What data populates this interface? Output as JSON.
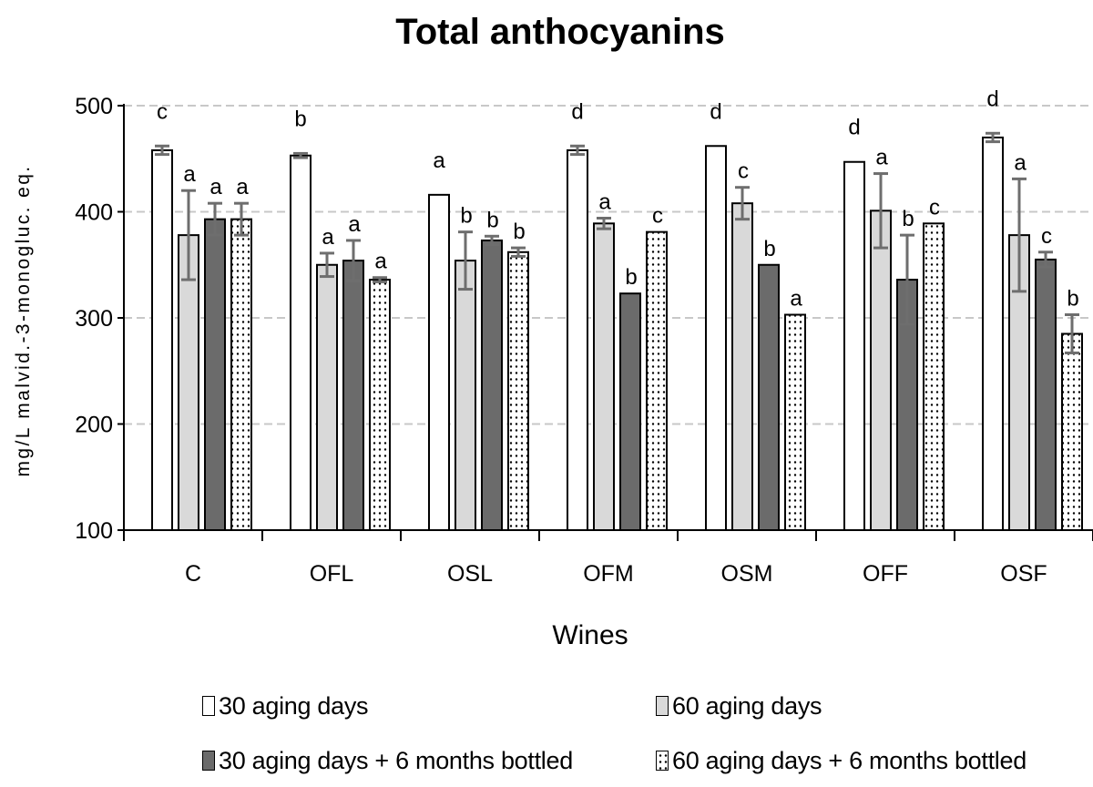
{
  "chart_data": {
    "type": "bar",
    "title": "Total anthocyanins",
    "xlabel": "Wines",
    "ylabel": "mg/L malvid.-3-monogluc. eq.",
    "ylim": [
      100,
      500
    ],
    "yticks": [
      100,
      200,
      300,
      400,
      500
    ],
    "grid": true,
    "legend_position": "bottom",
    "categories": [
      "C",
      "OFL",
      "OSL",
      "OFM",
      "OSM",
      "OFF",
      "OSF"
    ],
    "series": [
      {
        "name": "30 aging days",
        "color": "#ffffff",
        "pattern": "none",
        "values": [
          458,
          453,
          416,
          458,
          462,
          447,
          470
        ],
        "errors": [
          4,
          2,
          0,
          4,
          0,
          0,
          4
        ],
        "letters": [
          "c",
          "b",
          "a",
          "d",
          "d",
          "d",
          "d"
        ]
      },
      {
        "name": "60 aging days",
        "color": "#d9d9d9",
        "pattern": "none",
        "values": [
          378,
          350,
          354,
          389,
          408,
          401,
          378
        ],
        "errors": [
          42,
          11,
          27,
          5,
          15,
          35,
          53
        ],
        "letters": [
          "a",
          "a",
          "b",
          "a",
          "c",
          "a",
          "a"
        ]
      },
      {
        "name": "30 aging days + 6 months bottled",
        "color": "#6b6b6b",
        "pattern": "none",
        "values": [
          393,
          354,
          373,
          323,
          350,
          336,
          355
        ],
        "errors": [
          15,
          19,
          4,
          0,
          0,
          42,
          7
        ],
        "letters": [
          "a",
          "a",
          "b",
          "b",
          "b",
          "b",
          "c"
        ]
      },
      {
        "name": "60 aging days + 6 months bottled",
        "color": "#ffffff",
        "pattern": "dotted",
        "values": [
          393,
          336,
          362,
          381,
          303,
          389,
          285
        ],
        "errors": [
          15,
          2,
          4,
          0,
          0,
          0,
          18
        ],
        "letters": [
          "a",
          "a",
          "b",
          "c",
          "a",
          "c",
          "b"
        ]
      }
    ]
  }
}
